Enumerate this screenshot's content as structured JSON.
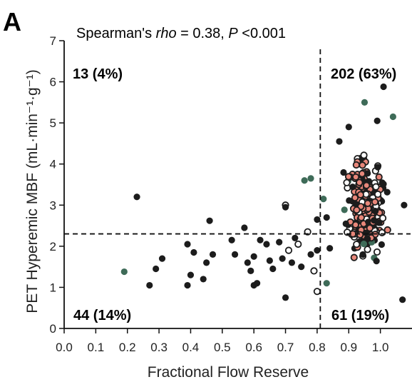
{
  "panel_label": "A",
  "chart_data": {
    "type": "scatter",
    "title": "",
    "annotation": {
      "prefix": "Spearman's ",
      "italic_rho": "rho",
      "middle": " = 0.38, ",
      "italic_p": "P",
      "suffix": " <0.001"
    },
    "xlabel": "Fractional Flow Reserve",
    "ylabel": "PET Hyperemic MBF (mL·min⁻¹·g⁻¹)",
    "xlim": [
      0.0,
      1.1
    ],
    "ylim": [
      0,
      7
    ],
    "x_ticks": [
      "0.0",
      "0.1",
      "0.2",
      "0.3",
      "0.4",
      "0.5",
      "0.6",
      "0.7",
      "0.8",
      "0.9",
      "1.0"
    ],
    "y_ticks": [
      "0",
      "1",
      "2",
      "3",
      "4",
      "5",
      "6",
      "7"
    ],
    "threshold_x": 0.81,
    "threshold_y": 2.3,
    "quadrant_labels": {
      "top_left": "13 (4%)",
      "top_right": "202 (63%)",
      "bottom_left": "44 (14%)",
      "bottom_right": "61 (19%)"
    },
    "colors": {
      "red": "#e0303a",
      "green": "#3e6b58",
      "dark": "#1c1c1c",
      "salmon": "#e8877a"
    },
    "grid": false,
    "points_sparse": [
      [
        0.19,
        1.38
      ],
      [
        0.23,
        3.2
      ],
      [
        0.27,
        1.05
      ],
      [
        0.29,
        1.45
      ],
      [
        0.31,
        1.7
      ],
      [
        0.39,
        2.05
      ],
      [
        0.39,
        1.05
      ],
      [
        0.4,
        1.3
      ],
      [
        0.41,
        1.85
      ],
      [
        0.44,
        1.2
      ],
      [
        0.45,
        1.6
      ],
      [
        0.46,
        2.62
      ],
      [
        0.47,
        1.8
      ],
      [
        0.53,
        2.15
      ],
      [
        0.54,
        1.8
      ],
      [
        0.57,
        2.45
      ],
      [
        0.58,
        1.6
      ],
      [
        0.59,
        1.4
      ],
      [
        0.6,
        1.75
      ],
      [
        0.6,
        1.05
      ],
      [
        0.61,
        1.1
      ],
      [
        0.62,
        2.15
      ],
      [
        0.64,
        2.05
      ],
      [
        0.65,
        1.65
      ],
      [
        0.66,
        1.45
      ],
      [
        0.68,
        2.1
      ],
      [
        0.69,
        1.7
      ],
      [
        0.7,
        3.0
      ],
      [
        0.7,
        2.95
      ],
      [
        0.7,
        0.75
      ],
      [
        0.71,
        1.9
      ],
      [
        0.72,
        1.6
      ],
      [
        0.73,
        2.2
      ],
      [
        0.74,
        2.05
      ],
      [
        0.75,
        1.5
      ],
      [
        0.76,
        3.6
      ],
      [
        0.77,
        2.35
      ],
      [
        0.78,
        1.8
      ],
      [
        0.78,
        3.65
      ],
      [
        0.79,
        1.4
      ],
      [
        0.8,
        1.9
      ],
      [
        0.8,
        2.65
      ],
      [
        0.8,
        0.9
      ]
    ],
    "points_dense_summary": {
      "x_range": [
        0.81,
        1.08
      ],
      "y_range": [
        0.6,
        5.9
      ],
      "count": 263
    }
  }
}
